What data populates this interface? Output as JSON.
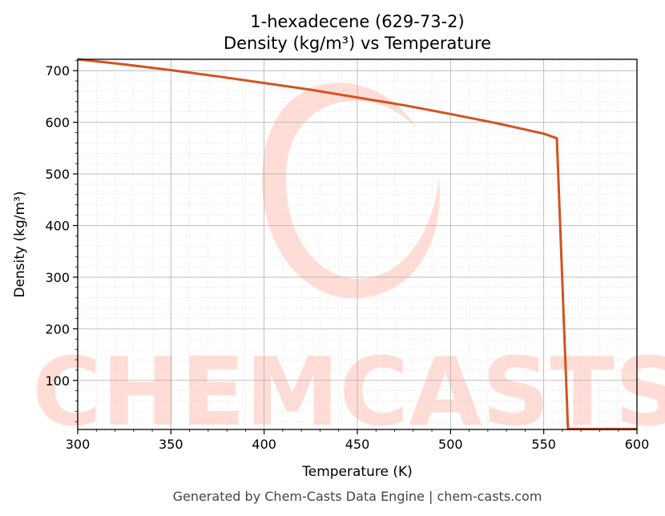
{
  "chart_data": {
    "type": "line",
    "title": "1-hexadecene (629-73-2)",
    "subtitle": "Density (kg/m³) vs Temperature",
    "xlabel": "Temperature (K)",
    "ylabel": "Density (kg/m³)",
    "xlim": [
      300,
      600
    ],
    "ylim": [
      5,
      722
    ],
    "x_ticks": [
      300,
      350,
      400,
      450,
      500,
      550,
      600
    ],
    "y_ticks": [
      100,
      200,
      300,
      400,
      500,
      600,
      700
    ],
    "grid": true,
    "line_color": "#d4521f",
    "series": [
      {
        "x": [
          300,
          325,
          350,
          375,
          400,
          425,
          450,
          475,
          500,
          525,
          550,
          557,
          563,
          600
        ],
        "values": [
          722,
          712,
          701,
          689,
          676,
          663,
          648,
          633,
          616,
          598,
          578,
          569,
          6,
          6
        ]
      }
    ]
  },
  "watermark": "CHEMCASTS",
  "footer": "Generated by Chem-Casts Data Engine | chem-casts.com"
}
